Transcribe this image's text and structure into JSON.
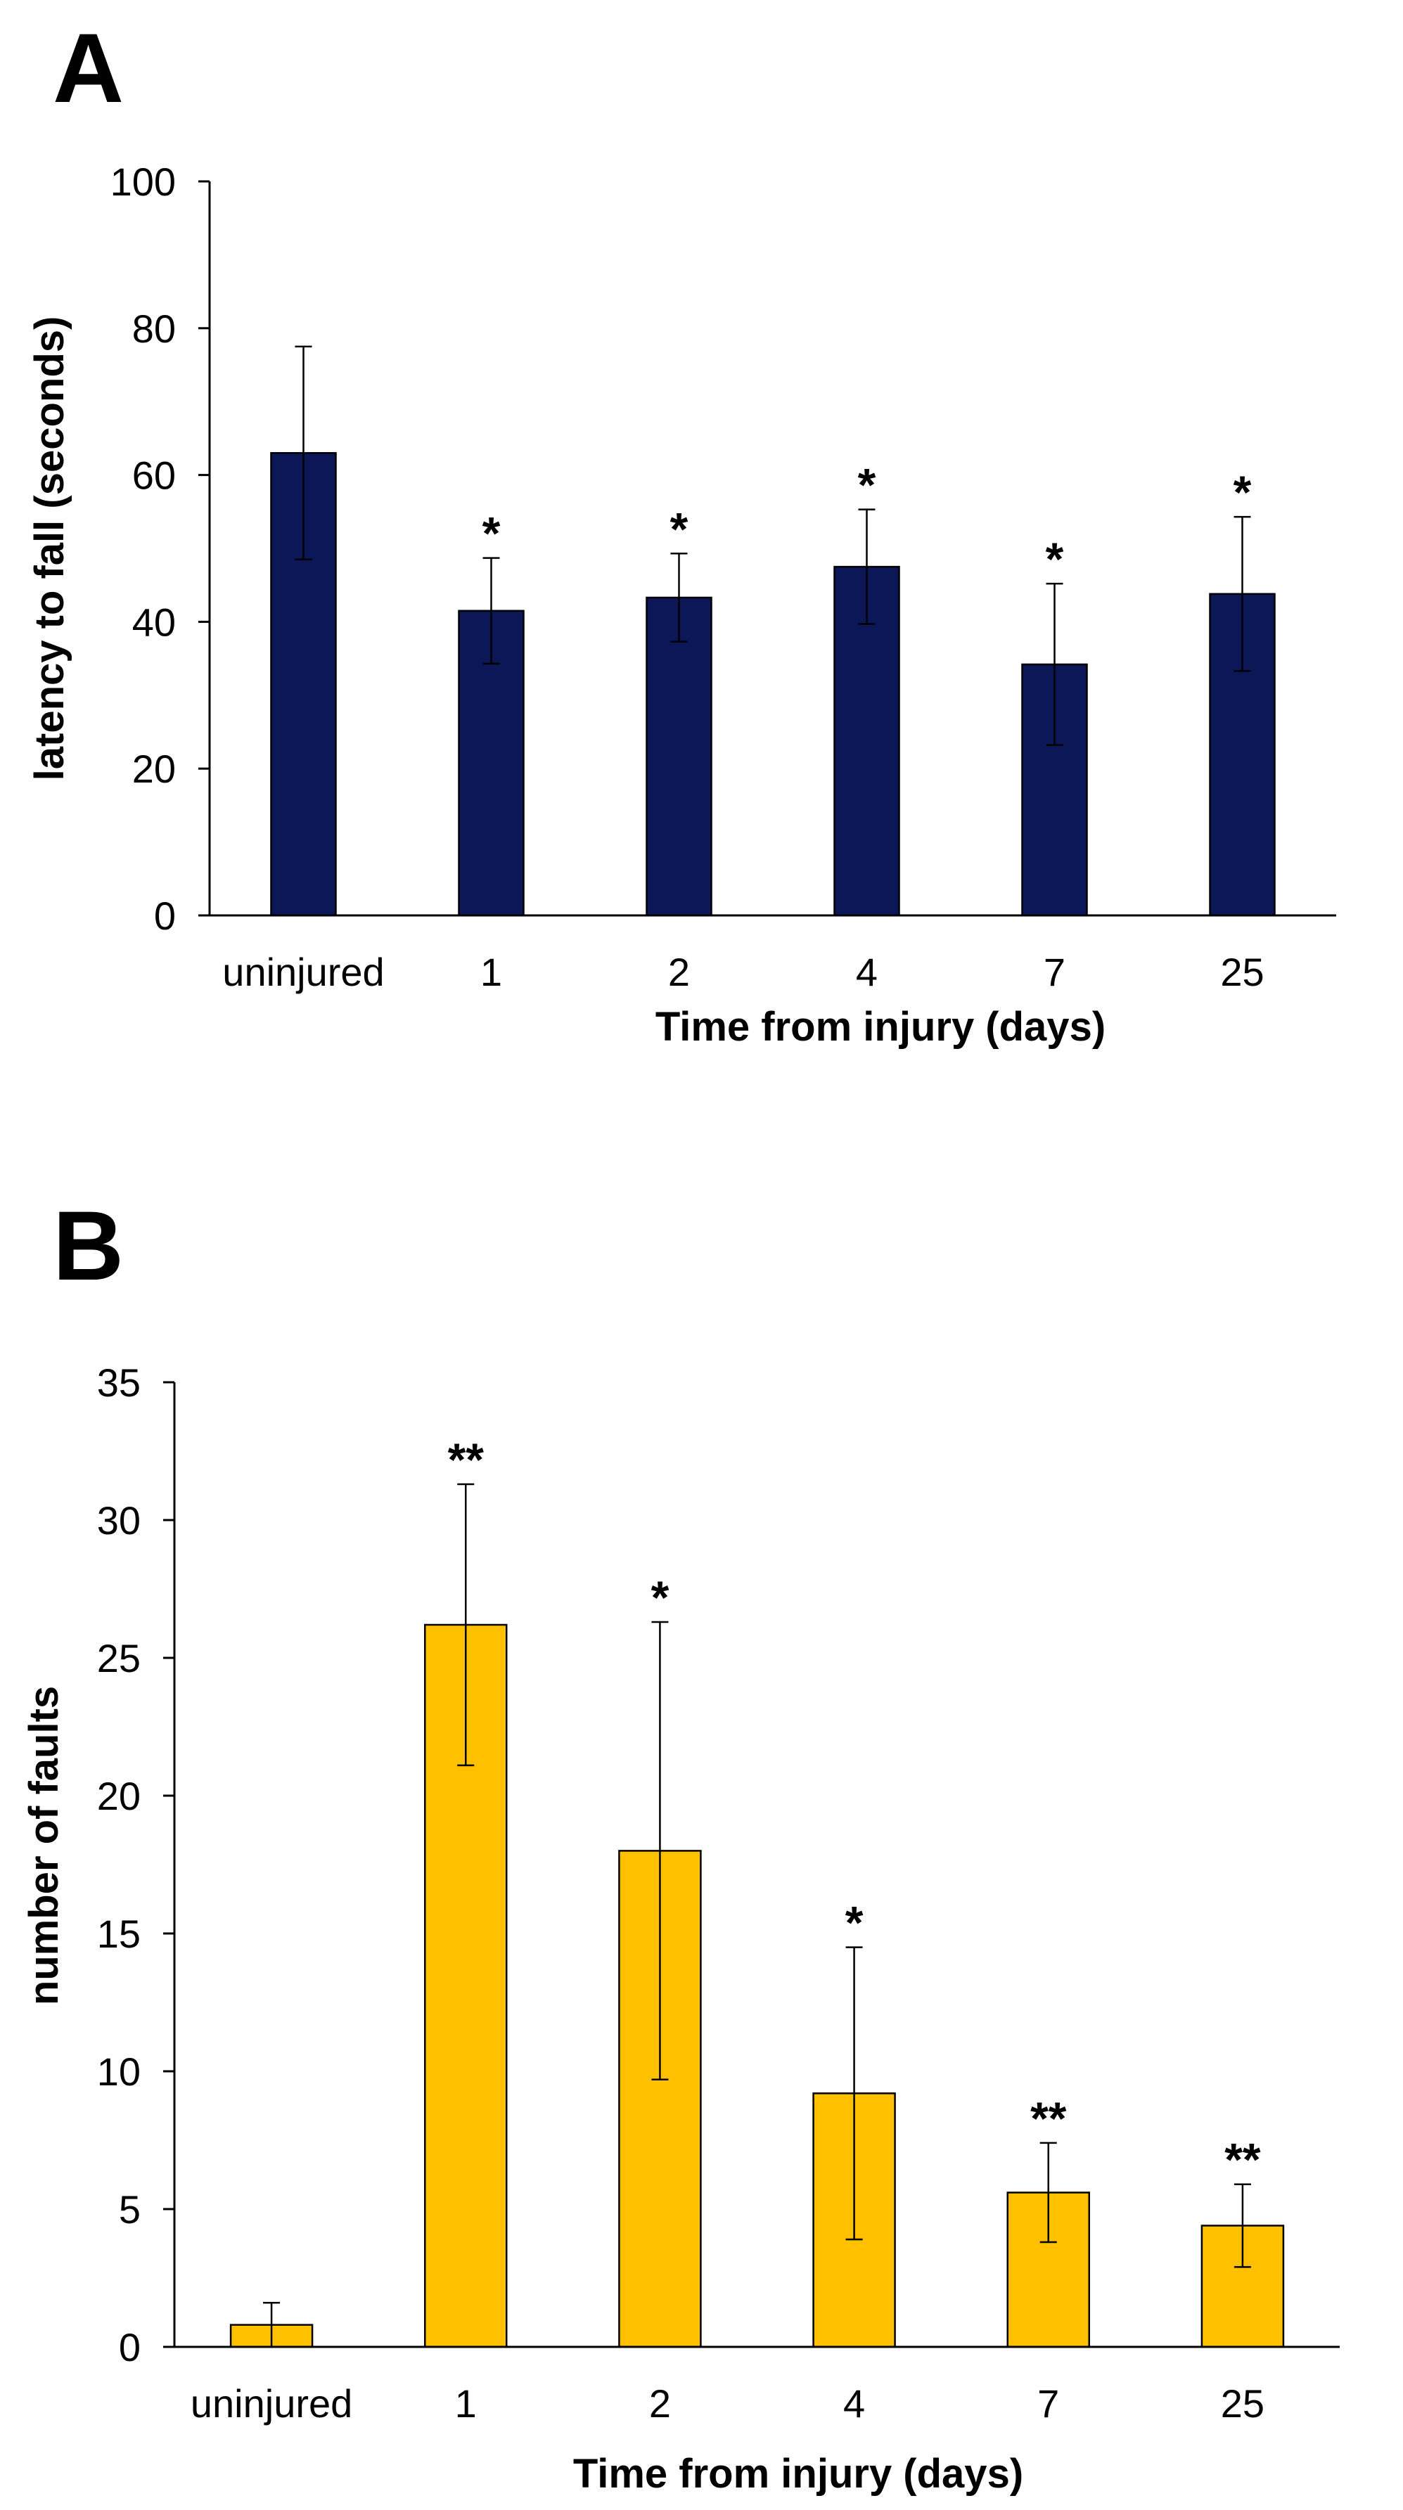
{
  "chart_data": [
    {
      "panel": "A",
      "type": "bar",
      "categories": [
        "uninjured",
        "1",
        "2",
        "4",
        "7",
        "25"
      ],
      "values": [
        63,
        41.5,
        43.3,
        47.5,
        34.2,
        43.8
      ],
      "errors": [
        14.5,
        7.2,
        6,
        7.8,
        11,
        10.5
      ],
      "significance": [
        "",
        "*",
        "*",
        "*",
        "*",
        "*"
      ],
      "xlabel": "Time from injury (days)",
      "ylabel": "latency to fall (seconds)",
      "ylim": [
        0,
        100
      ],
      "yticks": [
        0,
        20,
        40,
        60,
        80,
        100
      ],
      "bar_color": "#0c1757"
    },
    {
      "panel": "B",
      "type": "bar",
      "categories": [
        "uninjured",
        "1",
        "2",
        "4",
        "7",
        "25"
      ],
      "values": [
        0.8,
        26.2,
        18,
        9.2,
        5.6,
        4.4
      ],
      "errors": [
        0.8,
        5.1,
        8.3,
        5.3,
        1.8,
        1.5
      ],
      "significance": [
        "",
        "**",
        "*",
        "*",
        "**",
        "**"
      ],
      "xlabel": "Time from injury (days)",
      "ylabel": "number of faults",
      "ylim": [
        0,
        35
      ],
      "yticks": [
        0,
        5,
        10,
        15,
        20,
        25,
        30,
        35
      ],
      "bar_color": "#ffc000"
    }
  ]
}
